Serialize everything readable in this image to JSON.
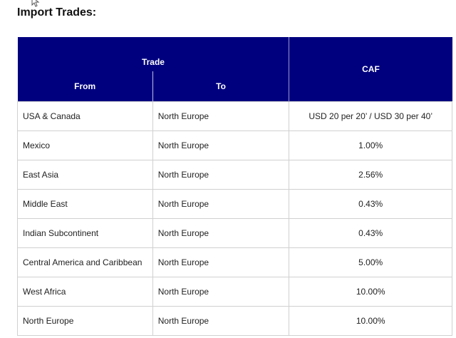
{
  "title": "Import Trades:",
  "table": {
    "header": {
      "trade": "Trade",
      "from": "From",
      "to": "To",
      "caf": "CAF"
    },
    "rows": [
      {
        "from": "USA & Canada",
        "to": "North Europe",
        "caf": "USD 20 per 20’ / USD 30 per 40’"
      },
      {
        "from": "Mexico",
        "to": "North Europe",
        "caf": "1.00%"
      },
      {
        "from": "East Asia",
        "to": "North Europe",
        "caf": "2.56%"
      },
      {
        "from": "Middle East",
        "to": "North Europe",
        "caf": "0.43%"
      },
      {
        "from": "Indian Subcontinent",
        "to": "North Europe",
        "caf": "0.43%"
      },
      {
        "from": "Central America and Caribbean",
        "to": "North Europe",
        "caf": "5.00%"
      },
      {
        "from": "West Africa",
        "to": "North Europe",
        "caf": "10.00%"
      },
      {
        "from": "North Europe",
        "to": "North Europe",
        "caf": "10.00%"
      }
    ]
  },
  "colors": {
    "header_bg": "#00007f",
    "header_text": "#ffffff",
    "border": "#d0d0d0"
  },
  "icons": {
    "cursor": "mouse-pointer-icon"
  }
}
